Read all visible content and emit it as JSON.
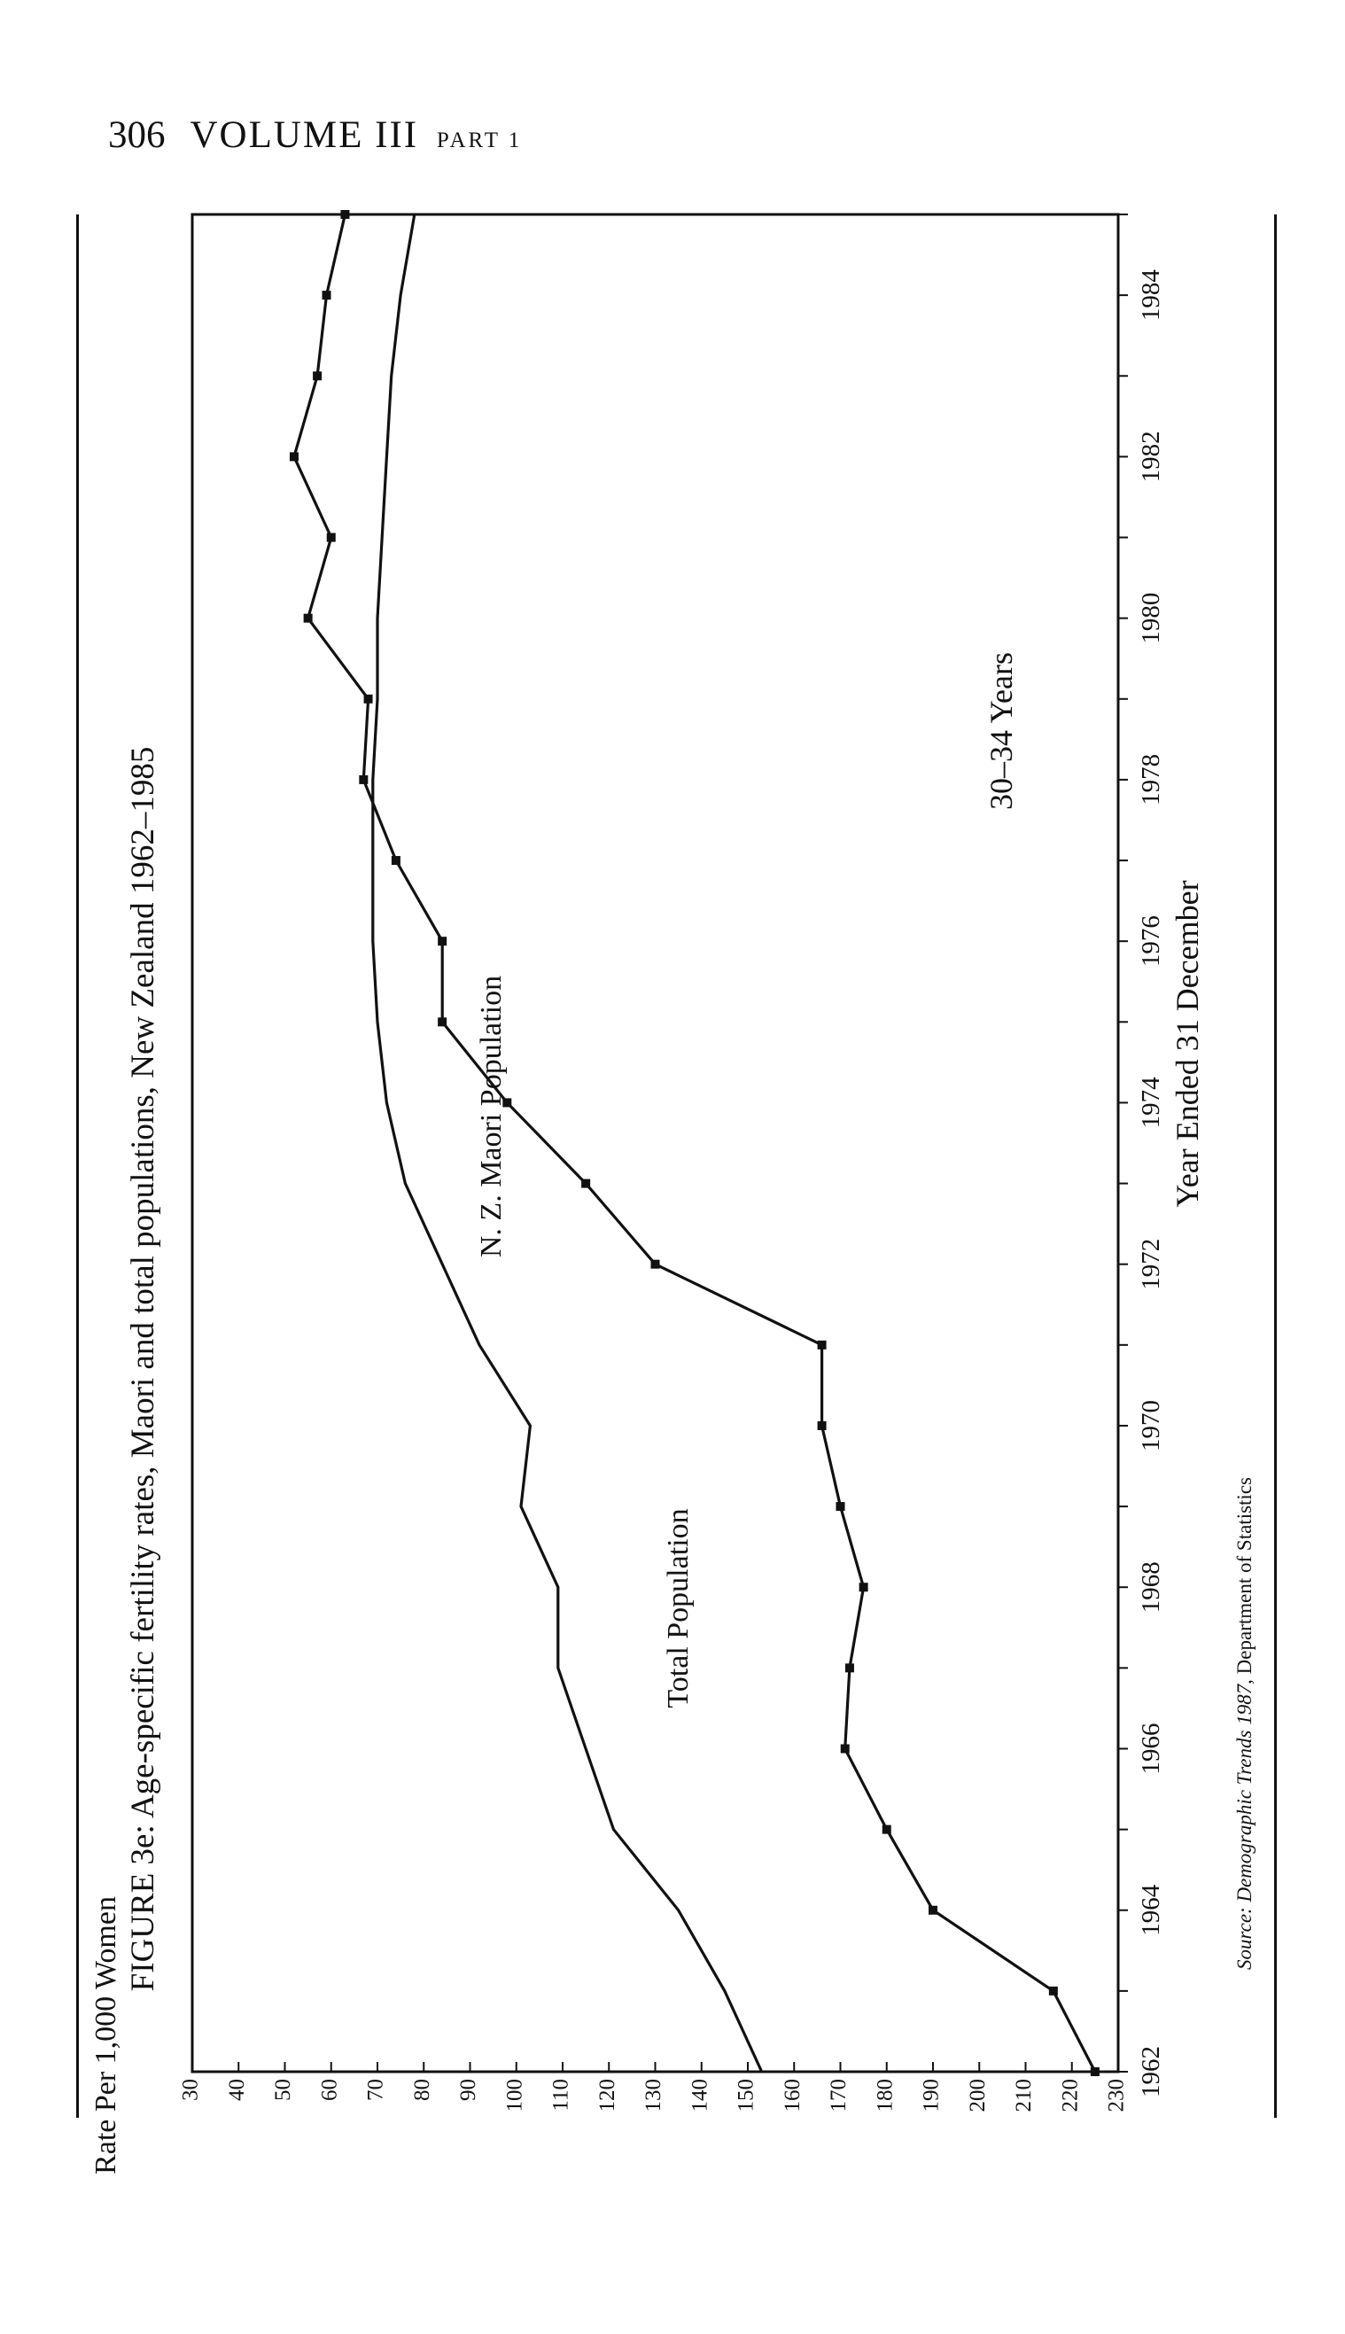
{
  "header": {
    "page_number": "306",
    "volume": "VOLUME III",
    "part": "PART 1"
  },
  "figure": {
    "title": "FIGURE 3e: Age-specific fertility rates, Maori and total populations, New Zealand 1962–1985",
    "source_italic": "Source: Demographic Trends 1987",
    "source_rest": ", Department of Statistics"
  },
  "chart_data": {
    "type": "line",
    "orientation": "rotated 90° counter-clockwise on the page",
    "title": "FIGURE 3e: Age-specific fertility rates, Maori and total populations, New Zealand 1962–1985",
    "subtitle": "30–34 Years",
    "xlabel": "Year Ended 31 December",
    "ylabel": "Rate Per 1,000 Women",
    "xlim": [
      1962,
      1985
    ],
    "ylim": [
      30,
      230
    ],
    "x_ticks": [
      1962,
      1964,
      1966,
      1968,
      1970,
      1972,
      1974,
      1976,
      1978,
      1980,
      1982,
      1984
    ],
    "y_ticks": [
      30,
      40,
      50,
      60,
      70,
      80,
      90,
      100,
      110,
      120,
      130,
      140,
      150,
      160,
      170,
      180,
      190,
      200,
      210,
      220,
      230
    ],
    "grid": false,
    "series": [
      {
        "name": "N. Z. Maori Population",
        "markers": true,
        "x": [
          1962,
          1963,
          1964,
          1965,
          1966,
          1967,
          1968,
          1969,
          1970,
          1971,
          1972,
          1973,
          1974,
          1975,
          1976,
          1977,
          1978,
          1979,
          1980,
          1981,
          1982,
          1983,
          1984,
          1985
        ],
        "y": [
          225,
          216,
          190,
          180,
          171,
          172,
          175,
          170,
          166,
          166,
          130,
          115,
          98,
          84,
          84,
          74,
          67,
          68,
          55,
          60,
          52,
          57,
          59,
          63
        ]
      },
      {
        "name": "Total Population",
        "markers": false,
        "x": [
          1962,
          1963,
          1964,
          1965,
          1966,
          1967,
          1968,
          1969,
          1970,
          1971,
          1972,
          1973,
          1974,
          1975,
          1976,
          1977,
          1978,
          1979,
          1980,
          1981,
          1982,
          1983,
          1984,
          1985
        ],
        "y": [
          153,
          145,
          135,
          121,
          115,
          109,
          109,
          101,
          103,
          92,
          84,
          76,
          72,
          70,
          69,
          69,
          69,
          70,
          70,
          71,
          72,
          73,
          75,
          78
        ]
      }
    ]
  }
}
